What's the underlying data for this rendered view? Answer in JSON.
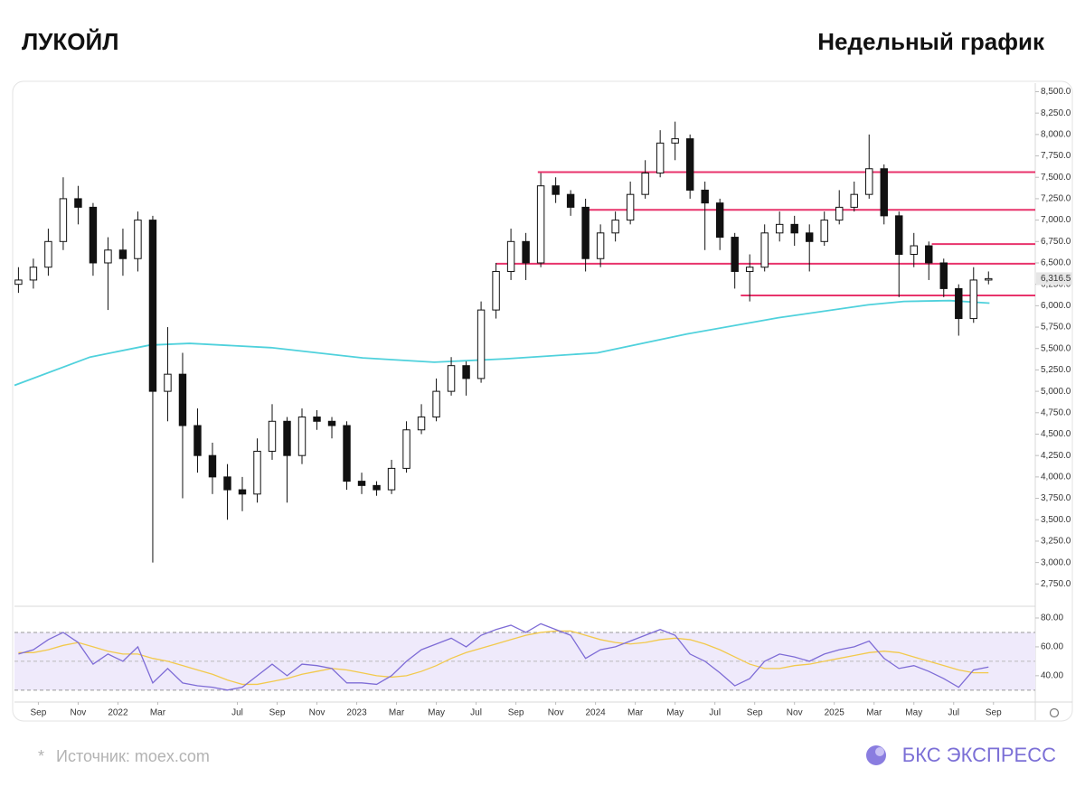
{
  "chart_data": {
    "type": "candlestick",
    "title": "ЛУКОЙЛ",
    "subtitle": "Недельный график",
    "x": [
      7,
      7.75,
      8.5,
      9.25,
      10,
      10.75,
      11.5,
      12.25,
      13,
      13.75,
      14.5,
      15.25,
      16,
      16.75,
      17.5,
      18.25,
      19,
      19.75,
      20.5,
      21.25,
      22,
      22.75,
      23.5,
      24.25,
      25,
      25.75,
      26.5,
      27.25,
      28,
      28.75,
      29.5,
      30.25,
      31,
      31.75,
      32.5,
      33.25,
      34,
      34.75,
      35.5,
      36.25,
      37,
      37.75,
      38.5,
      39.25,
      40,
      40.75,
      41.5,
      42.25,
      43,
      43.75,
      44.5,
      45.25,
      46,
      46.75,
      47.5,
      48.25,
      49,
      49.75,
      50.5,
      51.25,
      52,
      52.75,
      53.5,
      54.25,
      55,
      55.75
    ],
    "open": [
      6250,
      6300,
      6450,
      6750,
      7250,
      7150,
      6500,
      6650,
      6550,
      7000,
      5000,
      5200,
      4600,
      4250,
      4000,
      3850,
      3800,
      4300,
      4650,
      4250,
      4700,
      4650,
      4600,
      3950,
      3900,
      3850,
      4100,
      4550,
      4700,
      5000,
      5300,
      5150,
      5950,
      6400,
      6750,
      6500,
      7400,
      7300,
      7150,
      6550,
      6850,
      7000,
      7300,
      7550,
      7900,
      7950,
      7350,
      7200,
      6800,
      6400,
      6450,
      6850,
      6950,
      6850,
      6750,
      7000,
      7150,
      7300,
      7600,
      7050,
      6600,
      6700,
      6500,
      6200,
      5850,
      6300
    ],
    "high": [
      6450,
      6550,
      6900,
      7500,
      7400,
      7200,
      6800,
      6900,
      7100,
      7050,
      5750,
      5450,
      4800,
      4400,
      4150,
      4000,
      4450,
      4850,
      4700,
      4800,
      4780,
      4700,
      4650,
      4050,
      3950,
      4200,
      4650,
      4850,
      5150,
      5400,
      5350,
      6050,
      6500,
      6900,
      6850,
      7550,
      7500,
      7350,
      7250,
      6950,
      7100,
      7450,
      7700,
      8050,
      8150,
      8000,
      7450,
      7250,
      6850,
      6600,
      6950,
      7100,
      7050,
      6950,
      7100,
      7350,
      7450,
      8000,
      7650,
      7100,
      6850,
      6750,
      6550,
      6250,
      6450,
      6400
    ],
    "low": [
      6150,
      6200,
      6350,
      6650,
      6950,
      6350,
      5950,
      6350,
      6400,
      3000,
      4650,
      3750,
      4050,
      3800,
      3500,
      3600,
      3700,
      4200,
      3700,
      4150,
      4550,
      4450,
      3850,
      3800,
      3780,
      3800,
      4050,
      4500,
      4650,
      4950,
      4950,
      5100,
      5850,
      6300,
      6300,
      6450,
      7200,
      7050,
      6400,
      6450,
      6750,
      6950,
      7250,
      7500,
      7700,
      7250,
      6650,
      6650,
      6200,
      6050,
      6400,
      6750,
      6700,
      6400,
      6700,
      6950,
      7100,
      7250,
      6950,
      6100,
      6450,
      6300,
      6100,
      5650,
      5800,
      6250
    ],
    "close": [
      6300,
      6450,
      6750,
      7250,
      7150,
      6500,
      6650,
      6550,
      7000,
      5000,
      5200,
      4600,
      4250,
      4000,
      3850,
      3800,
      4300,
      4650,
      4250,
      4700,
      4650,
      4600,
      3950,
      3900,
      3850,
      4100,
      4550,
      4700,
      5000,
      5300,
      5150,
      5950,
      6400,
      6750,
      6500,
      7400,
      7300,
      7150,
      6550,
      6850,
      7000,
      7300,
      7550,
      7900,
      7950,
      7350,
      7200,
      6800,
      6400,
      6450,
      6850,
      6950,
      6850,
      6750,
      7000,
      7150,
      7300,
      7600,
      7050,
      6600,
      6700,
      6500,
      6200,
      5850,
      6300,
      6316.5
    ],
    "up_color": "#ffffff",
    "down_color": "#111111",
    "last_price_label": "6,316.5",
    "xlim": [
      6.8,
      58.1
    ],
    "xticks": [
      {
        "value": 8,
        "label": "Sep"
      },
      {
        "value": 10,
        "label": "Nov"
      },
      {
        "value": 12,
        "label": "2022"
      },
      {
        "value": 14,
        "label": "Mar"
      },
      {
        "value": 18,
        "label": "Jul"
      },
      {
        "value": 20,
        "label": "Sep"
      },
      {
        "value": 22,
        "label": "Nov"
      },
      {
        "value": 24,
        "label": "2023"
      },
      {
        "value": 26,
        "label": "Mar"
      },
      {
        "value": 28,
        "label": "May"
      },
      {
        "value": 30,
        "label": "Jul"
      },
      {
        "value": 32,
        "label": "Sep"
      },
      {
        "value": 34,
        "label": "Nov"
      },
      {
        "value": 36,
        "label": "2024"
      },
      {
        "value": 38,
        "label": "Mar"
      },
      {
        "value": 40,
        "label": "May"
      },
      {
        "value": 42,
        "label": "Jul"
      },
      {
        "value": 44,
        "label": "Sep"
      },
      {
        "value": 46,
        "label": "Nov"
      },
      {
        "value": 48,
        "label": "2025"
      },
      {
        "value": 50,
        "label": "Mar"
      },
      {
        "value": 52,
        "label": "May"
      },
      {
        "value": 54,
        "label": "Jul"
      },
      {
        "value": 56,
        "label": "Sep"
      }
    ],
    "ylim": [
      2500,
      8600
    ],
    "yticks": [
      {
        "value": 2750,
        "label": "2,750.0"
      },
      {
        "value": 3000,
        "label": "3,000.0"
      },
      {
        "value": 3250,
        "label": "3,250.0"
      },
      {
        "value": 3500,
        "label": "3,500.0"
      },
      {
        "value": 3750,
        "label": "3,750.0"
      },
      {
        "value": 4000,
        "label": "4,000.0"
      },
      {
        "value": 4250,
        "label": "4,250.0"
      },
      {
        "value": 4500,
        "label": "4,500.0"
      },
      {
        "value": 4750,
        "label": "4,750.0"
      },
      {
        "value": 5000,
        "label": "5,000.0"
      },
      {
        "value": 5250,
        "label": "5,250.0"
      },
      {
        "value": 5500,
        "label": "5,500.0"
      },
      {
        "value": 5750,
        "label": "5,750.0"
      },
      {
        "value": 6000,
        "label": "6,000.0"
      },
      {
        "value": 6250,
        "label": "6,250.0"
      },
      {
        "value": 6500,
        "label": "6,500.0"
      },
      {
        "value": 6750,
        "label": "6,750.0"
      },
      {
        "value": 7000,
        "label": "7,000.0"
      },
      {
        "value": 7250,
        "label": "7,250.0"
      },
      {
        "value": 7500,
        "label": "7,500.0"
      },
      {
        "value": 7750,
        "label": "7,750.0"
      },
      {
        "value": 8000,
        "label": "8,000.0"
      },
      {
        "value": 8250,
        "label": "8,250.0"
      },
      {
        "value": 8500,
        "label": "8,500.0"
      }
    ],
    "moving_average": {
      "color": "#4fd1dc",
      "x": [
        6.8,
        10.6,
        13.6,
        15.6,
        19.7,
        24.3,
        27.9,
        31.5,
        36.1,
        40.6,
        45.2,
        49.7,
        51.5,
        53.8,
        55.8
      ],
      "values": [
        5070,
        5400,
        5540,
        5560,
        5510,
        5390,
        5340,
        5380,
        5450,
        5670,
        5860,
        6010,
        6050,
        6060,
        6030
      ]
    },
    "levels": {
      "color": "#e8336b",
      "values": [
        7560,
        7120,
        6720,
        6490,
        6120
      ],
      "start": [
        33.1,
        35.4,
        52.9,
        31.0,
        43.3
      ]
    },
    "rsi": {
      "ylim": [
        23,
        87.5
      ],
      "yticks": [
        {
          "value": 40,
          "label": "40.00"
        },
        {
          "value": 60,
          "label": "60.00"
        },
        {
          "value": 80,
          "label": "80.00"
        }
      ],
      "bands": [
        30,
        70
      ],
      "midline": 50,
      "band_color": "#efeafb",
      "series": [
        {
          "color": "#7e6cd6",
          "values": [
            55,
            58,
            65,
            70,
            63,
            48,
            55,
            50,
            60,
            35,
            45,
            35,
            33,
            32,
            30,
            32,
            40,
            48,
            40,
            48,
            47,
            45,
            35,
            35,
            34,
            40,
            50,
            58,
            62,
            66,
            60,
            68,
            72,
            75,
            70,
            76,
            72,
            68,
            52,
            58,
            60,
            64,
            68,
            72,
            68,
            55,
            50,
            42,
            33,
            38,
            50,
            55,
            53,
            50,
            55,
            58,
            60,
            64,
            52,
            45,
            47,
            43,
            38,
            32,
            44,
            46
          ]
        },
        {
          "color": "#f2c94c",
          "values": [
            56,
            56,
            58,
            61,
            63,
            60,
            57,
            55,
            55,
            52,
            50,
            47,
            44,
            41,
            37,
            34,
            34,
            36,
            38,
            41,
            43,
            45,
            44,
            42,
            40,
            39,
            40,
            43,
            47,
            52,
            56,
            59,
            62,
            65,
            68,
            70,
            71,
            71,
            68,
            65,
            63,
            62,
            63,
            65,
            66,
            65,
            62,
            58,
            53,
            48,
            45,
            45,
            47,
            48,
            50,
            52,
            54,
            56,
            57,
            56,
            53,
            50,
            47,
            44,
            42,
            42
          ]
        }
      ]
    },
    "source_mark": "*",
    "source": "Источник: moex.com",
    "brand": "БКС ЭКСПРЕСС"
  }
}
